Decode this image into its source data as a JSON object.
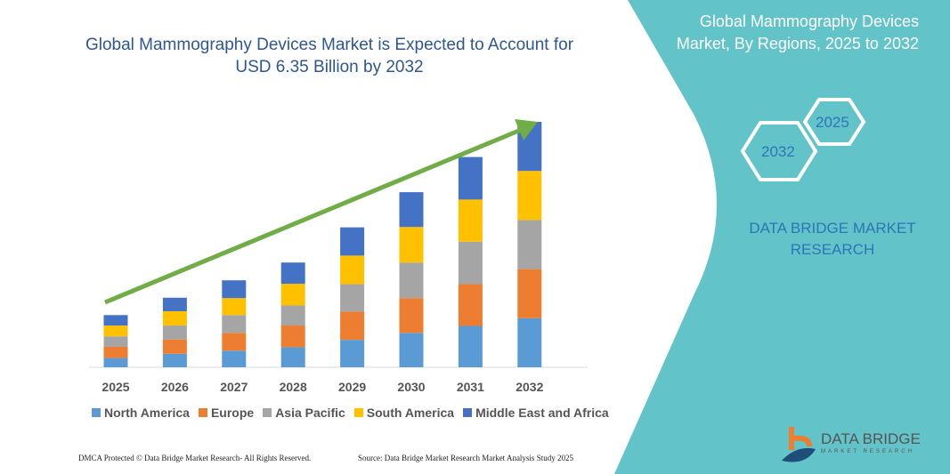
{
  "header": {
    "title_line1": "Global Mammography Devices Market is Expected to Account for",
    "title_line2": "USD 6.35 Billion by 2032"
  },
  "side_panel": {
    "title_line1": "Global Mammography Devices",
    "title_line2": "Market, By Regions, 2025 to 2032",
    "hex_start": "2025",
    "hex_end": "2032",
    "brand_line1": "DATA BRIDGE MARKET",
    "brand_line2": "RESEARCH",
    "color": "#62c3c9"
  },
  "logo": {
    "name": "DATA BRIDGE",
    "sub": "MARKET RESEARCH"
  },
  "footer": {
    "left": "DMCA Protected © Data Bridge Market Research-  All Rights Reserved.",
    "right": "Source: Data Bridge Market Research  Market Analysis Study 2025"
  },
  "chart_data": {
    "type": "bar",
    "stacked": true,
    "title": "Global Mammography Devices Market is Expected to Account for USD 6.35 Billion by 2032",
    "categories": [
      "2025",
      "2026",
      "2027",
      "2028",
      "2029",
      "2030",
      "2031",
      "2032"
    ],
    "series": [
      {
        "name": "North America",
        "color": "#5b9bd5",
        "values": [
          0.24,
          0.35,
          0.43,
          0.52,
          0.71,
          0.89,
          1.07,
          1.27
        ]
      },
      {
        "name": "Europe",
        "color": "#ed7d31",
        "values": [
          0.29,
          0.37,
          0.46,
          0.56,
          0.73,
          0.9,
          1.08,
          1.27
        ]
      },
      {
        "name": "Asia Pacific",
        "color": "#a5a5a5",
        "values": [
          0.27,
          0.36,
          0.46,
          0.52,
          0.71,
          0.92,
          1.1,
          1.27
        ]
      },
      {
        "name": "South America",
        "color": "#ffc000",
        "values": [
          0.28,
          0.37,
          0.44,
          0.56,
          0.74,
          0.92,
          1.09,
          1.27
        ]
      },
      {
        "name": "Middle East and Africa",
        "color": "#4472c4",
        "values": [
          0.27,
          0.35,
          0.46,
          0.55,
          0.73,
          0.9,
          1.1,
          1.27
        ]
      }
    ],
    "ylim": [
      0,
      6.35
    ],
    "grid": false,
    "legend": "bottom",
    "trend_arrow_color": "#70ad47"
  }
}
